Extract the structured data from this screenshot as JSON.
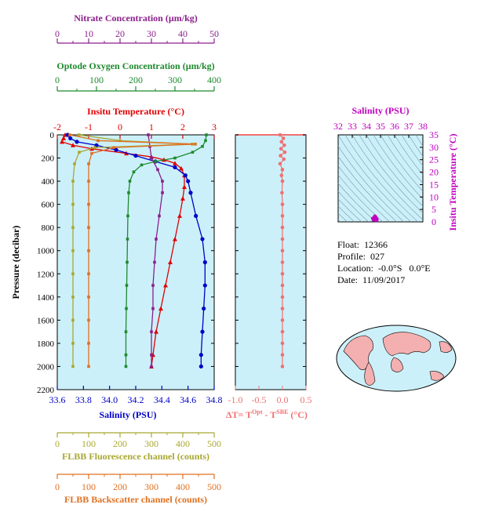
{
  "colors": {
    "nitrate": "#8b1f8b",
    "oxygen": "#1e8a2e",
    "temperature": "#e00000",
    "salinity": "#0000c8",
    "fluorescence": "#a8a832",
    "backscatter": "#e07020",
    "delta": "#f07070",
    "ts_axis": "#c000c0",
    "panel_bg": "#ccf0fa",
    "land": "#f4b0b0"
  },
  "info": {
    "float_label": "Float:",
    "float_value": "12366",
    "profile_label": "Profile:",
    "profile_value": "027",
    "location_label": "Location:",
    "location_value": "-0.0°S   0.0°E",
    "date_label": "Date:",
    "date_value": "11/09/2017"
  },
  "chart_data": [
    {
      "type": "line",
      "title": "",
      "ylabel": "Pressure (decibar)",
      "ylim": [
        2200,
        0
      ],
      "yticks": [
        "0",
        "200",
        "400",
        "600",
        "800",
        "1000",
        "1200",
        "1400",
        "1600",
        "1800",
        "2000",
        "2200"
      ],
      "axes": [
        {
          "key": "nitrate",
          "label": "Nitrate Concentration (µm/kg)",
          "range": [
            0,
            50
          ],
          "ticks": [
            "0",
            "10",
            "20",
            "30",
            "40",
            "50"
          ]
        },
        {
          "key": "oxygen",
          "label": "Optode Oxygen Concentration (µm/kg)",
          "range": [
            0,
            400
          ],
          "ticks": [
            "0",
            "100",
            "200",
            "300",
            "400"
          ]
        },
        {
          "key": "temperature",
          "label": "Insitu Temperature (°C)",
          "range": [
            -2,
            3
          ],
          "ticks": [
            "-2",
            "-1",
            "0",
            "1",
            "2",
            "3"
          ]
        },
        {
          "key": "salinity",
          "label": "Salinity (PSU)",
          "range": [
            33.6,
            34.8
          ],
          "ticks": [
            "33.6",
            "33.8",
            "34.0",
            "34.2",
            "34.4",
            "34.6",
            "34.8"
          ]
        },
        {
          "key": "fluorescence",
          "label": "FLBB Fluorescence channel (counts)",
          "range": [
            0,
            500
          ],
          "ticks": [
            "0",
            "100",
            "200",
            "300",
            "400",
            "500"
          ]
        },
        {
          "key": "backscatter",
          "label": "FLBB Backscatter channel (counts)",
          "range": [
            0,
            500
          ],
          "ticks": [
            "0",
            "100",
            "200",
            "300",
            "400",
            "500"
          ]
        }
      ],
      "series": [
        {
          "key": "temperature",
          "marker": "triangle",
          "points": [
            [
              -1.75,
              0
            ],
            [
              -1.8,
              30
            ],
            [
              -1.85,
              60
            ],
            [
              -1.5,
              90
            ],
            [
              -0.9,
              120
            ],
            [
              0.2,
              160
            ],
            [
              1.0,
              190
            ],
            [
              1.4,
              215
            ],
            [
              1.75,
              245
            ],
            [
              1.95,
              290
            ],
            [
              2.05,
              350
            ],
            [
              2.05,
              450
            ],
            [
              2.0,
              550
            ],
            [
              1.9,
              700
            ],
            [
              1.75,
              900
            ],
            [
              1.6,
              1100
            ],
            [
              1.45,
              1300
            ],
            [
              1.3,
              1500
            ],
            [
              1.15,
              1700
            ],
            [
              1.05,
              1900
            ],
            [
              1.0,
              2000
            ]
          ]
        },
        {
          "key": "salinity",
          "marker": "circle",
          "points": [
            [
              33.68,
              0
            ],
            [
              33.7,
              30
            ],
            [
              33.75,
              60
            ],
            [
              33.9,
              90
            ],
            [
              34.05,
              130
            ],
            [
              34.2,
              180
            ],
            [
              34.35,
              230
            ],
            [
              34.5,
              280
            ],
            [
              34.58,
              350
            ],
            [
              34.6,
              400
            ],
            [
              34.62,
              500
            ],
            [
              34.66,
              700
            ],
            [
              34.71,
              900
            ],
            [
              34.73,
              1100
            ],
            [
              34.73,
              1300
            ],
            [
              34.72,
              1500
            ],
            [
              34.71,
              1700
            ],
            [
              34.7,
              1900
            ],
            [
              34.7,
              2000
            ]
          ]
        },
        {
          "key": "oxygen",
          "marker": "square",
          "points": [
            [
              380,
              0
            ],
            [
              378,
              50
            ],
            [
              370,
              100
            ],
            [
              345,
              150
            ],
            [
              300,
              200
            ],
            [
              250,
              230
            ],
            [
              215,
              260
            ],
            [
              195,
              320
            ],
            [
              185,
              400
            ],
            [
              182,
              500
            ],
            [
              180,
              700
            ],
            [
              179,
              900
            ],
            [
              178,
              1100
            ],
            [
              177,
              1300
            ],
            [
              176,
              1500
            ],
            [
              175,
              1700
            ],
            [
              175,
              1900
            ],
            [
              175,
              2000
            ]
          ]
        },
        {
          "key": "nitrate",
          "marker": "square",
          "points": [
            [
              29,
              0
            ],
            [
              29.5,
              100
            ],
            [
              30,
              200
            ],
            [
              32,
              300
            ],
            [
              33.5,
              400
            ],
            [
              33.5,
              500
            ],
            [
              32.5,
              700
            ],
            [
              31.5,
              900
            ],
            [
              31,
              1100
            ],
            [
              30.5,
              1300
            ],
            [
              30.5,
              1500
            ],
            [
              30,
              1700
            ],
            [
              30,
              1900
            ],
            [
              30,
              2000
            ]
          ]
        },
        {
          "key": "fluorescence",
          "marker": "square",
          "points": [
            [
              70,
              0
            ],
            [
              200,
              50
            ],
            [
              430,
              80
            ],
            [
              120,
              110
            ],
            [
              70,
              150
            ],
            [
              55,
              250
            ],
            [
              50,
              400
            ],
            [
              50,
              600
            ],
            [
              50,
              800
            ],
            [
              50,
              1000
            ],
            [
              50,
              1200
            ],
            [
              50,
              1400
            ],
            [
              50,
              1600
            ],
            [
              50,
              1800
            ],
            [
              50,
              2000
            ]
          ]
        },
        {
          "key": "backscatter",
          "marker": "square",
          "points": [
            [
              40,
              0
            ],
            [
              130,
              50
            ],
            [
              440,
              80
            ],
            [
              180,
              110
            ],
            [
              110,
              160
            ],
            [
              100,
              250
            ],
            [
              100,
              400
            ],
            [
              100,
              600
            ],
            [
              100,
              800
            ],
            [
              100,
              1000
            ],
            [
              100,
              1200
            ],
            [
              100,
              1400
            ],
            [
              100,
              1600
            ],
            [
              100,
              1800
            ],
            [
              100,
              2000
            ]
          ]
        }
      ]
    },
    {
      "type": "scatter",
      "title": "",
      "xlabel": "ΔT= T",
      "xlabel_sup1": "Opt",
      "xlabel_mid": " - T",
      "xlabel_sup2": "SBE",
      "xlabel_tail": " (°C)",
      "xlim": [
        -1.0,
        0.5
      ],
      "ylim": [
        2200,
        0
      ],
      "xticks": [
        "-1.0",
        "-0.5",
        "0.0",
        "0.5"
      ],
      "points": [
        [
          -0.05,
          0
        ],
        [
          0.02,
          30
        ],
        [
          -0.02,
          60
        ],
        [
          0.04,
          90
        ],
        [
          -0.03,
          120
        ],
        [
          0.05,
          150
        ],
        [
          -0.04,
          180
        ],
        [
          0.03,
          210
        ],
        [
          -0.05,
          250
        ],
        [
          0.0,
          300
        ],
        [
          -0.02,
          350
        ],
        [
          0.0,
          400
        ],
        [
          -0.01,
          500
        ],
        [
          0.0,
          600
        ],
        [
          0.0,
          700
        ],
        [
          0.0,
          800
        ],
        [
          0.0,
          900
        ],
        [
          0.0,
          1000
        ],
        [
          0.0,
          1100
        ],
        [
          0.0,
          1200
        ],
        [
          0.0,
          1300
        ],
        [
          0.0,
          1400
        ],
        [
          0.0,
          1500
        ],
        [
          0.0,
          1600
        ],
        [
          0.0,
          1700
        ],
        [
          0.0,
          1800
        ],
        [
          0.0,
          1900
        ],
        [
          0.0,
          2000
        ]
      ]
    },
    {
      "type": "scatter",
      "title": "",
      "xlabel": "Salinity (PSU)",
      "ylabel": "Insitu Temperature (°C)",
      "xlim": [
        32,
        38
      ],
      "ylim": [
        0,
        35
      ],
      "xticks": [
        "32",
        "33",
        "34",
        "35",
        "36",
        "37",
        "38"
      ],
      "yticks": [
        "0",
        "5",
        "10",
        "15",
        "20",
        "25",
        "30",
        "35"
      ],
      "points": [
        [
          34.6,
          1.0
        ],
        [
          34.7,
          1.5
        ],
        [
          34.65,
          2.0
        ],
        [
          34.55,
          1.8
        ],
        [
          34.72,
          1.2
        ],
        [
          34.5,
          0.8
        ],
        [
          34.68,
          0.6
        ],
        [
          34.6,
          2.3
        ],
        [
          34.45,
          1.4
        ],
        [
          34.75,
          0.9
        ]
      ]
    }
  ]
}
